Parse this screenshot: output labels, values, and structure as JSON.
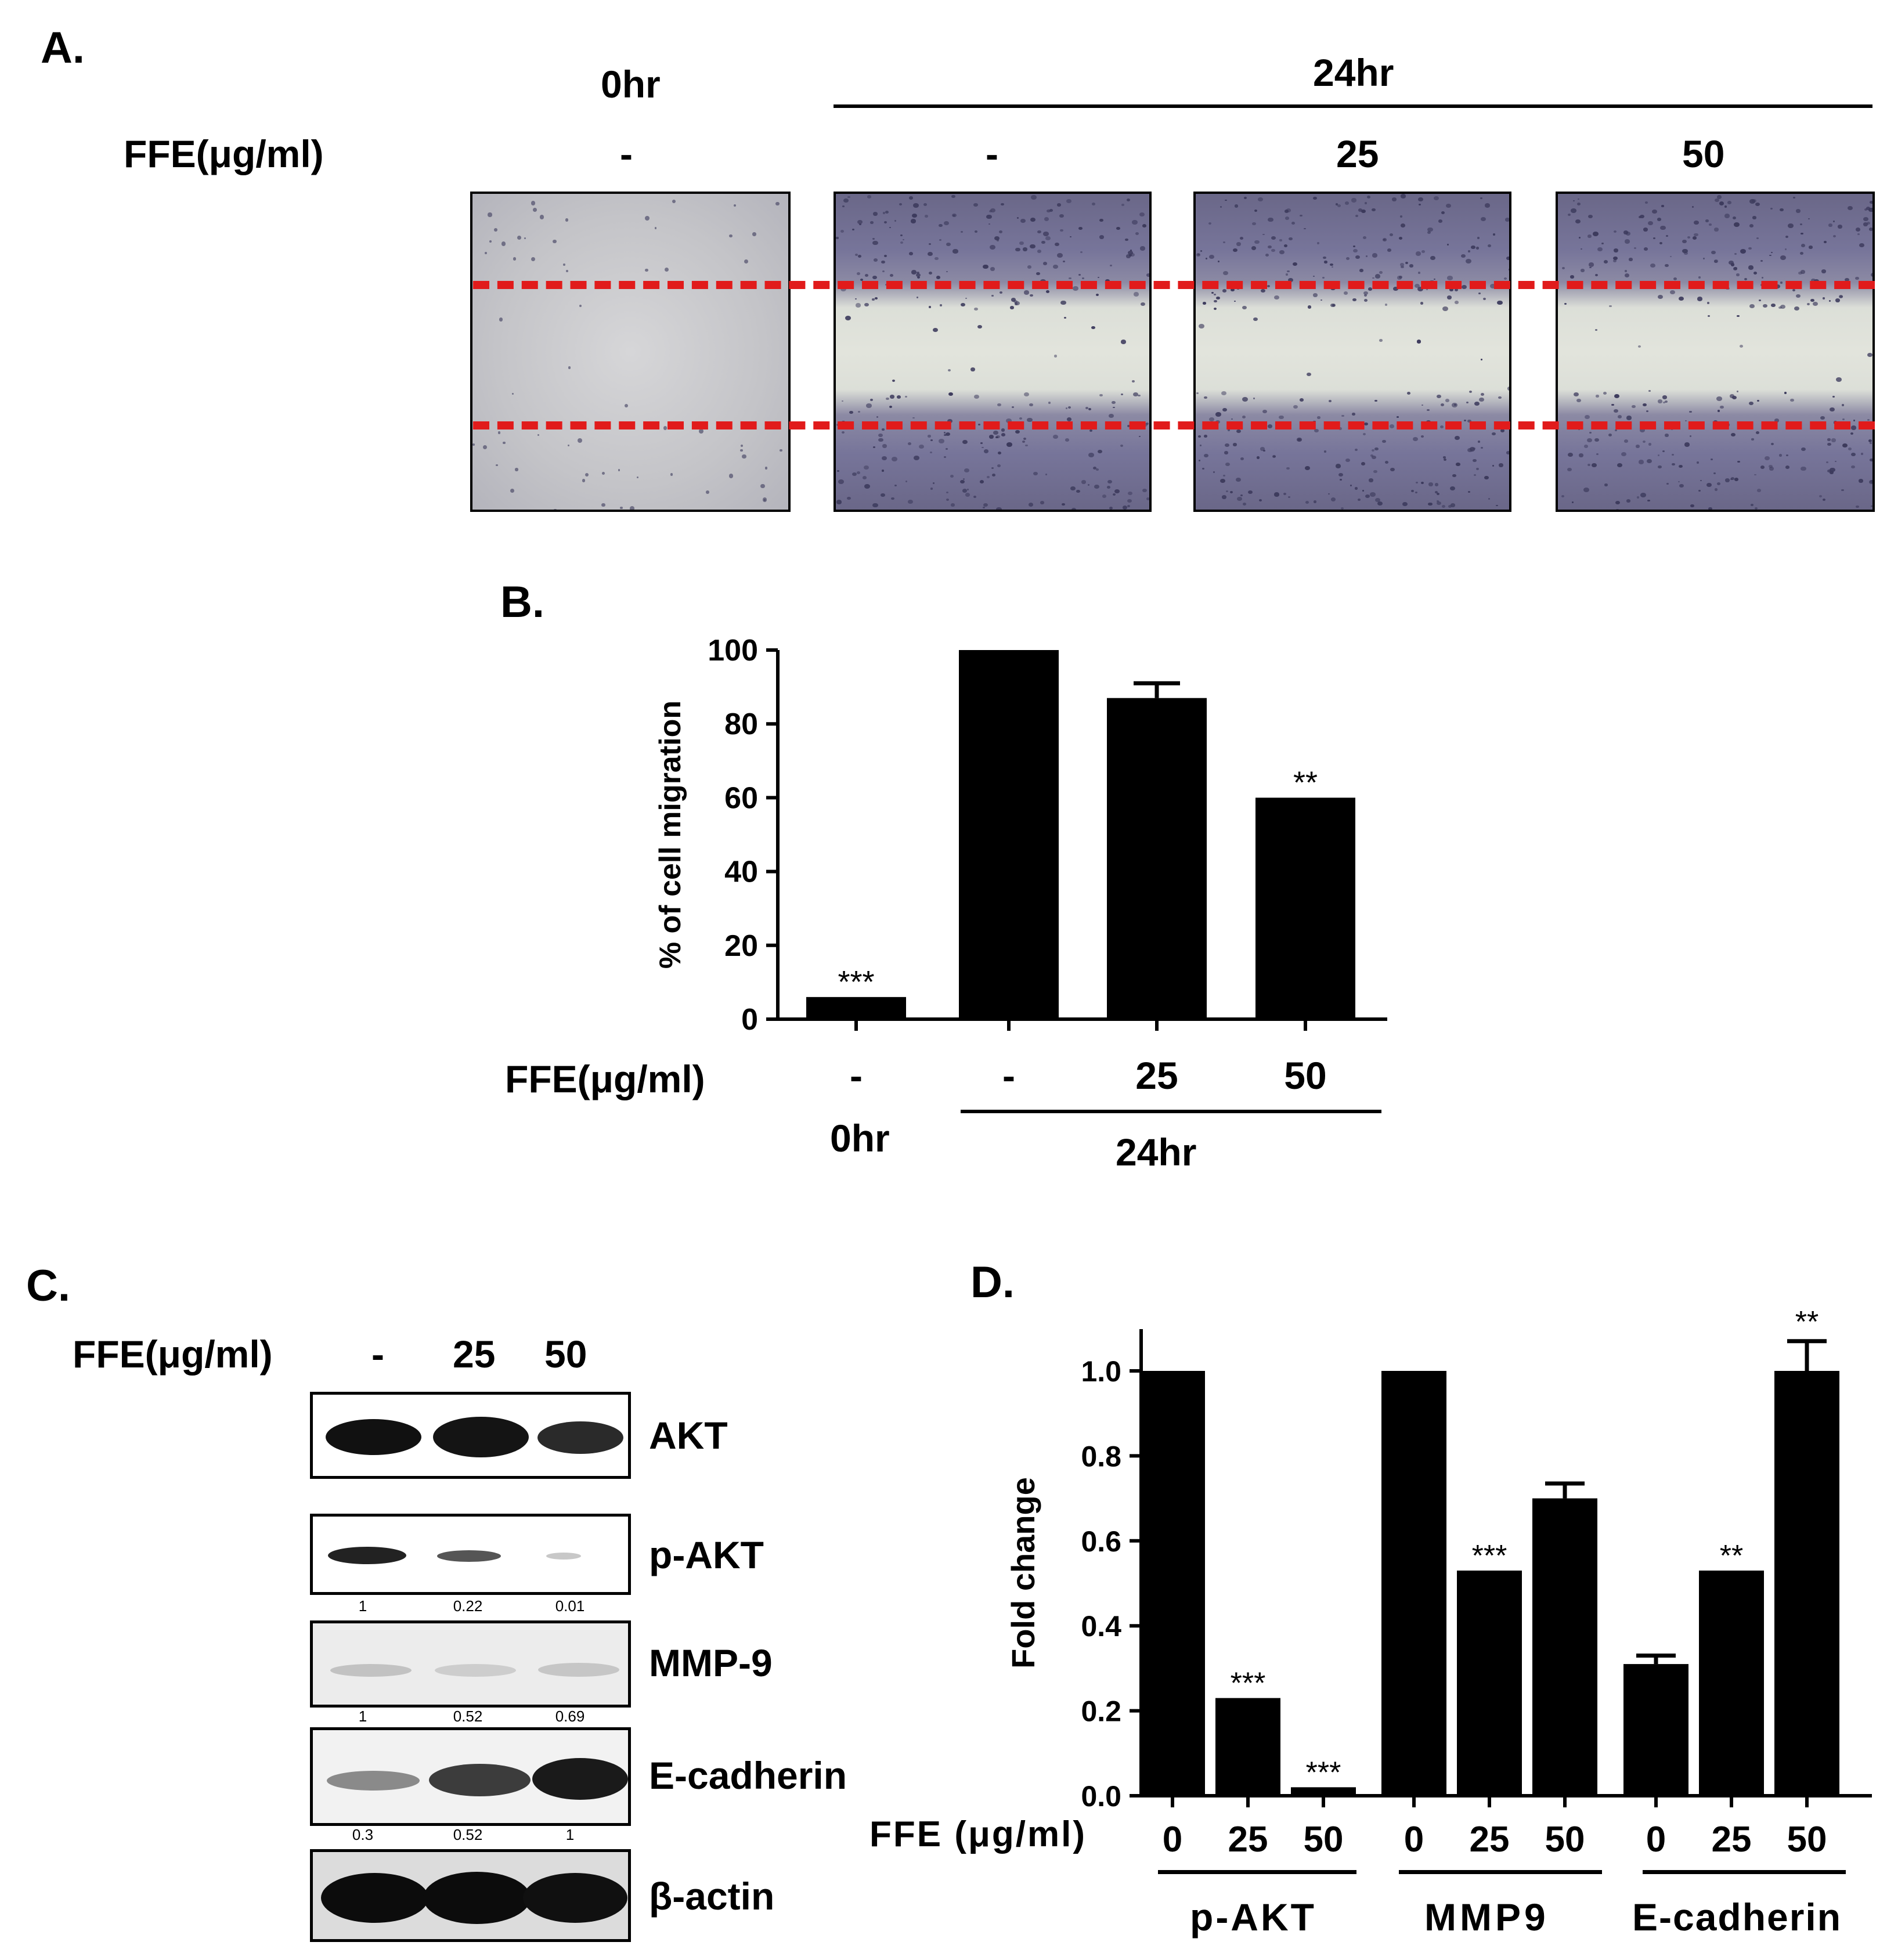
{
  "panel_a": {
    "label": "A.",
    "time_0": "0hr",
    "time_24": "24hr",
    "dose_label": "FFE(μg/ml)",
    "doses": [
      "-",
      "-",
      "25",
      "50"
    ]
  },
  "panel_b": {
    "label": "B.",
    "ylabel": "% of cell migration",
    "dose_label": "FFE(μg/ml)",
    "time_0": "0hr",
    "time_24": "24hr",
    "chart_data": {
      "type": "bar",
      "categories": [
        "-",
        "-",
        "25",
        "50"
      ],
      "values": [
        6,
        100,
        87,
        60
      ],
      "errors": [
        0,
        0,
        4,
        0
      ],
      "annotations": [
        "***",
        "",
        "",
        "**"
      ],
      "ylim": [
        0,
        100
      ],
      "yticks": [
        "0",
        "20",
        "40",
        "60",
        "80",
        "100"
      ]
    }
  },
  "panel_c": {
    "label": "C.",
    "dose_label": "FFE(μg/ml)",
    "doses": [
      "-",
      "25",
      "50"
    ],
    "proteins": [
      "AKT",
      "p-AKT",
      "MMP-9",
      "E-cadherin",
      "β-actin"
    ],
    "quant": {
      "p_akt": [
        "1",
        "0.22",
        "0.01"
      ],
      "mmp9": [
        "1",
        "0.52",
        "0.69"
      ],
      "ecad": [
        "0.3",
        "0.52",
        "1"
      ]
    }
  },
  "panel_d": {
    "label": "D.",
    "ylabel": "Fold change",
    "dose_label": "FFE (μg/ml)",
    "chart_data": {
      "type": "bar",
      "groups": [
        "p-AKT",
        "MMP9",
        "E-cadherin"
      ],
      "categories": [
        "0",
        "25",
        "50",
        "0",
        "25",
        "50",
        "0",
        "25",
        "50"
      ],
      "values": [
        1.0,
        0.23,
        0.02,
        1.0,
        0.53,
        0.7,
        0.31,
        0.53,
        1.0
      ],
      "errors": [
        0,
        0,
        0,
        0,
        0,
        0.035,
        0.02,
        0,
        0.07
      ],
      "annotations": [
        "",
        "***",
        "***",
        "",
        "***",
        "",
        "",
        "**",
        "**"
      ],
      "ylim": [
        0,
        1.0
      ],
      "yticks": [
        "0.0",
        "0.2",
        "0.4",
        "0.6",
        "0.8",
        "1.0"
      ]
    }
  }
}
